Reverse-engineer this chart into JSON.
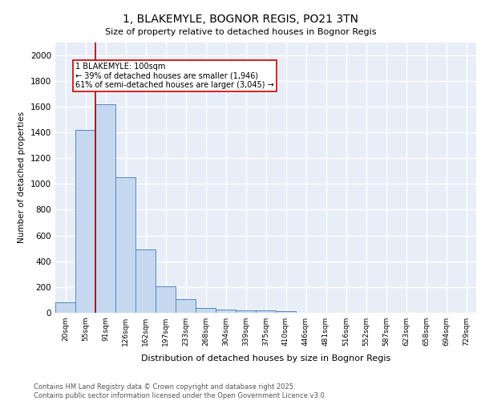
{
  "title1": "1, BLAKEMYLE, BOGNOR REGIS, PO21 3TN",
  "title2": "Size of property relative to detached houses in Bognor Regis",
  "xlabel": "Distribution of detached houses by size in Bognor Regis",
  "ylabel": "Number of detached properties",
  "categories": [
    "20sqm",
    "55sqm",
    "91sqm",
    "126sqm",
    "162sqm",
    "197sqm",
    "233sqm",
    "268sqm",
    "304sqm",
    "339sqm",
    "375sqm",
    "410sqm",
    "446sqm",
    "481sqm",
    "516sqm",
    "552sqm",
    "587sqm",
    "623sqm",
    "658sqm",
    "694sqm",
    "729sqm"
  ],
  "values": [
    80,
    1420,
    1620,
    1050,
    490,
    205,
    105,
    38,
    28,
    20,
    18,
    15,
    0,
    0,
    0,
    0,
    0,
    0,
    0,
    0,
    0
  ],
  "bar_color": "#c5d8f0",
  "bar_edge_color": "#5588bb",
  "red_line_x": 1.5,
  "annotation_text": "1 BLAKEMYLE: 100sqm\n← 39% of detached houses are smaller (1,946)\n61% of semi-detached houses are larger (3,045) →",
  "annotation_box_color": "#ffffff",
  "annotation_box_edge": "#cc0000",
  "ylim": [
    0,
    2100
  ],
  "yticks": [
    0,
    200,
    400,
    600,
    800,
    1000,
    1200,
    1400,
    1600,
    1800,
    2000
  ],
  "bg_color": "#e8eef8",
  "grid_color": "#ffffff",
  "footer1": "Contains HM Land Registry data © Crown copyright and database right 2025.",
  "footer2": "Contains public sector information licensed under the Open Government Licence v3.0."
}
